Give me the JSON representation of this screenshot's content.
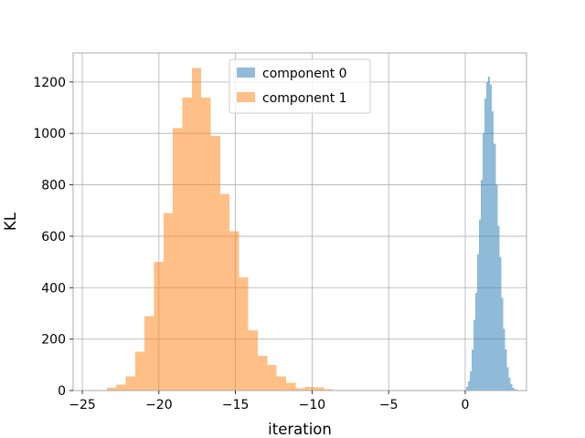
{
  "chart_data": {
    "type": "histogram",
    "title": "",
    "xlabel": "iteration",
    "ylabel": "KL",
    "xlim": [
      -25.6,
      4.0
    ],
    "ylim": [
      0,
      1313
    ],
    "grid": true,
    "legend_placement": "upper center",
    "xticks": [
      -25,
      -20,
      -15,
      -10,
      -5,
      0
    ],
    "xtick_labels": [
      "−25",
      "−20",
      "−15",
      "−10",
      "−5",
      "0"
    ],
    "yticks": [
      0,
      200,
      400,
      600,
      800,
      1000,
      1200
    ],
    "ytick_labels": [
      "0",
      "200",
      "400",
      "600",
      "800",
      "1000",
      "1200"
    ],
    "series": [
      {
        "name": "component 0",
        "color": "#1f77b4",
        "opacity": 0.5,
        "bin_start": -0.06,
        "bin_width": 0.1204,
        "counts": [
          2,
          15,
          35,
          75,
          160,
          275,
          380,
          530,
          665,
          820,
          1000,
          1135,
          1200,
          1220,
          1190,
          1085,
          960,
          800,
          640,
          520,
          360,
          240,
          160,
          90,
          50,
          25,
          10,
          6,
          3,
          1
        ]
      },
      {
        "name": "component 1",
        "color": "#ff7f0e",
        "opacity": 0.5,
        "bin_start": -23.4,
        "bin_width": 0.6161,
        "counts": [
          10,
          23,
          55,
          150,
          290,
          500,
          690,
          1020,
          1140,
          1255,
          1140,
          990,
          765,
          620,
          440,
          235,
          135,
          100,
          55,
          30,
          8,
          15,
          12,
          5
        ]
      }
    ]
  }
}
